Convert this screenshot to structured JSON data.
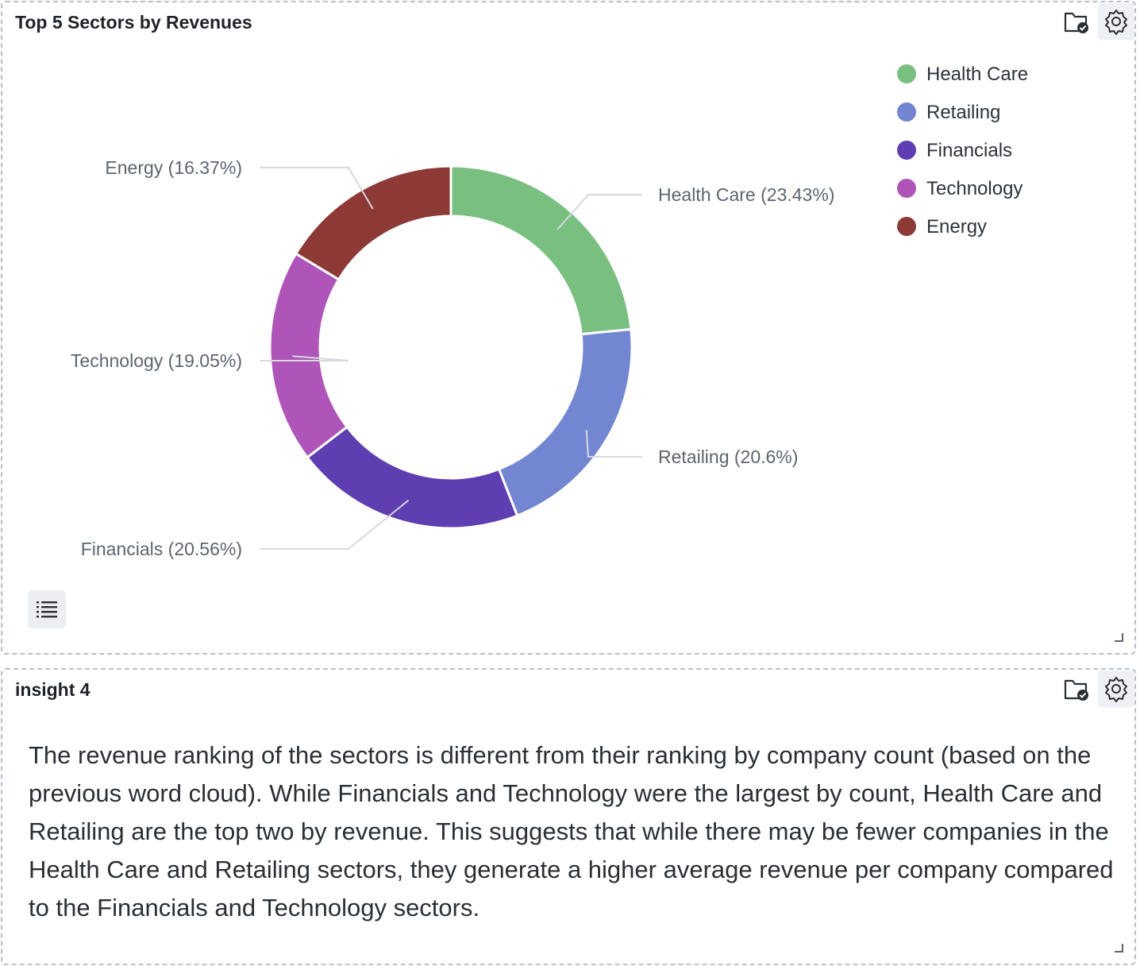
{
  "chart_panel": {
    "title": "Top 5 Sectors by Revenues"
  },
  "chart_data": {
    "type": "pie",
    "title": "Top 5 Sectors by Revenues",
    "donut": true,
    "legend_position": "top-right",
    "slices": [
      {
        "label": "Health Care",
        "percent": 23.43,
        "display": "Health Care (23.43%)",
        "color": "#79bf80"
      },
      {
        "label": "Retailing",
        "percent": 20.6,
        "display": "Retailing (20.6%)",
        "color": "#7286d2"
      },
      {
        "label": "Financials",
        "percent": 20.56,
        "display": "Financials (20.56%)",
        "color": "#5e3eb0"
      },
      {
        "label": "Technology",
        "percent": 19.05,
        "display": "Technology (19.05%)",
        "color": "#af55b9"
      },
      {
        "label": "Energy",
        "percent": 16.37,
        "display": "Energy (16.37%)",
        "color": "#8d3a37"
      }
    ]
  },
  "insight_panel": {
    "title": "insight 4",
    "text": "The revenue ranking of the sectors is different from their ranking by company count (based on the previous word cloud). While Financials and Technology were the largest by count, Health Care and Retailing are the top two by revenue. This suggests that while there may be fewer companies in the Health Care and Retailing sectors, they generate a higher average revenue per company compared to the Financials and Technology sectors."
  },
  "icons": {
    "folder": "folder-check-icon",
    "settings": "gear-icon",
    "legend_toggle": "list-icon",
    "resize": "resize-handle-icon"
  }
}
